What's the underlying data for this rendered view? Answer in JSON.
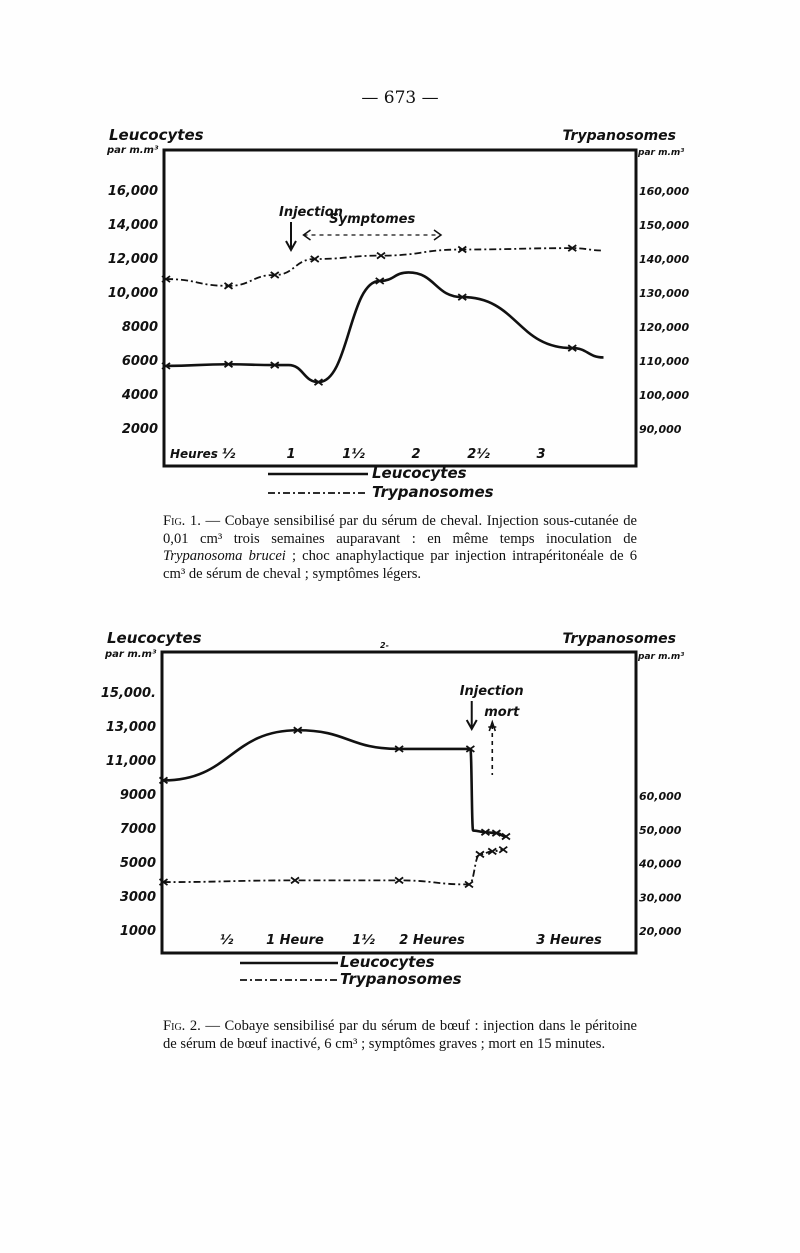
{
  "page_number": "— 673 —",
  "chart_data": [
    {
      "type": "line",
      "figure": "Fig. 1",
      "left_axis_label": [
        "Leucocytes",
        "par m.m³"
      ],
      "right_axis_label": [
        "Trypanosomes",
        "par m.m³"
      ],
      "x_label": "Heures",
      "x_ticks": [
        {
          "v": 0.5,
          "t": "½"
        },
        {
          "v": 1,
          "t": "1"
        },
        {
          "v": 1.5,
          "t": "1½"
        },
        {
          "v": 2,
          "t": "2"
        },
        {
          "v": 2.5,
          "t": "2½"
        },
        {
          "v": 3,
          "t": "3"
        }
      ],
      "left_ticks": [
        {
          "v": 16000,
          "t": "16,000"
        },
        {
          "v": 14000,
          "t": "14,000"
        },
        {
          "v": 12000,
          "t": "12,000"
        },
        {
          "v": 10000,
          "t": "10,000"
        },
        {
          "v": 8000,
          "t": "8000"
        },
        {
          "v": 6000,
          "t": "6000"
        },
        {
          "v": 4000,
          "t": "4000"
        },
        {
          "v": 2000,
          "t": "2000"
        }
      ],
      "right_ticks": [
        {
          "v": 160000,
          "t": "160,000"
        },
        {
          "v": 150000,
          "t": "150,000"
        },
        {
          "v": 140000,
          "t": "140,000"
        },
        {
          "v": 130000,
          "t": "130,000"
        },
        {
          "v": 120000,
          "t": "120,000"
        },
        {
          "v": 110000,
          "t": "110,000"
        },
        {
          "v": 100000,
          "t": "100,000"
        },
        {
          "v": 90000,
          "t": "90,000"
        }
      ],
      "xlim": [
        0,
        3.5
      ],
      "series": [
        {
          "name": "Leucocytes",
          "axis": "left",
          "style": "solid",
          "points": [
            [
              0,
              5650
            ],
            [
              0.5,
              5750
            ],
            [
              0.87,
              5700
            ],
            [
              0.98,
              5700
            ],
            [
              1.22,
              4700
            ],
            [
              1.71,
              10650
            ],
            [
              1.94,
              11150
            ],
            [
              2.37,
              9700
            ],
            [
              3.25,
              6700
            ],
            [
              3.5,
              6150
            ]
          ],
          "markers": [
            0,
            1,
            2,
            4,
            5,
            7,
            8
          ]
        },
        {
          "name": "Trypanosomes",
          "axis": "right",
          "style": "dashdot",
          "points": [
            [
              0,
              133800
            ],
            [
              0.5,
              131800
            ],
            [
              0.87,
              135000
            ],
            [
              1.19,
              139700
            ],
            [
              1.72,
              140700
            ],
            [
              2.37,
              142500
            ],
            [
              3.25,
              142900
            ],
            [
              3.5,
              142200
            ]
          ],
          "markers": [
            0,
            1,
            2,
            3,
            4,
            5,
            6
          ]
        }
      ],
      "annotations": [
        {
          "text": "Injection",
          "x": 1.0,
          "kind": "arrow-down"
        },
        {
          "text": "Symptomes",
          "from": 1.1,
          "to": 2.2,
          "kind": "range-arrow"
        }
      ],
      "legend": [
        {
          "text": "Leucocytes",
          "style": "solid"
        },
        {
          "text": "Trypanosomes",
          "style": "dashdot"
        }
      ],
      "legend_placement": "bottom"
    },
    {
      "type": "line",
      "figure": "Fig. 2",
      "left_axis_label": [
        "Leucocytes",
        "par m.m³"
      ],
      "right_axis_label": [
        "Trypanosomes",
        "par m.m³"
      ],
      "corner_mark": "2-",
      "x_ticks": [
        {
          "v": 0.5,
          "t": "½"
        },
        {
          "v": 1,
          "t": "1 Heure"
        },
        {
          "v": 1.5,
          "t": "1½"
        },
        {
          "v": 2,
          "t": "2 Heures"
        },
        {
          "v": 3,
          "t": "3 Heures"
        }
      ],
      "left_ticks": [
        {
          "v": 15000,
          "t": "15,000."
        },
        {
          "v": 13000,
          "t": "13,000"
        },
        {
          "v": 11000,
          "t": "11,000"
        },
        {
          "v": 9000,
          "t": "9000"
        },
        {
          "v": 7000,
          "t": "7000"
        },
        {
          "v": 5000,
          "t": "5000"
        },
        {
          "v": 3000,
          "t": "3000"
        },
        {
          "v": 1000,
          "t": "1000"
        }
      ],
      "right_ticks": [
        {
          "v": 60000,
          "t": "60,000"
        },
        {
          "v": 50000,
          "t": "50,000"
        },
        {
          "v": 40000,
          "t": "40,000"
        },
        {
          "v": 30000,
          "t": "30,000"
        },
        {
          "v": 20000,
          "t": "20,000"
        }
      ],
      "xlim": [
        0,
        3.45
      ],
      "series": [
        {
          "name": "Leucocytes",
          "axis": "left",
          "style": "solid",
          "points": [
            [
              0.04,
              9800
            ],
            [
              1.02,
              12750
            ],
            [
              1.76,
              11650
            ],
            [
              2.28,
              11650
            ],
            [
              2.3,
              6850
            ],
            [
              2.39,
              6750
            ],
            [
              2.47,
              6700
            ],
            [
              2.54,
              6500
            ]
          ],
          "markers": [
            0,
            1,
            2,
            3,
            5,
            6,
            7
          ]
        },
        {
          "name": "Trypanosomes",
          "axis": "right",
          "style": "dashdot",
          "points": [
            [
              0.04,
              34200
            ],
            [
              1.0,
              34700
            ],
            [
              1.76,
              34700
            ],
            [
              2.27,
              33500
            ],
            [
              2.35,
              42400
            ],
            [
              2.44,
              43300
            ],
            [
              2.52,
              43800
            ]
          ],
          "markers": [
            0,
            1,
            2,
            3,
            4,
            5,
            6
          ]
        }
      ],
      "annotations": [
        {
          "text": "Injection",
          "x": 2.29,
          "kind": "arrow-down"
        },
        {
          "text": "mort",
          "x": 2.44,
          "kind": "dashed-arrow-up"
        }
      ],
      "legend": [
        {
          "text": "Leucocytes",
          "style": "solid"
        },
        {
          "text": "Trypanosomes",
          "style": "dashdot"
        }
      ],
      "legend_placement": "bottom"
    }
  ],
  "captions": {
    "fig1": {
      "label": "Fig. 1.",
      "text_before_italic": " — Cobaye sensibilisé par du sérum de cheval. Injection sous-cutanée de 0,01 cm³ trois semaines auparavant : en même temps inoculation de ",
      "italic": "Trypanosoma brucei",
      "text_after_italic": " ; choc anaphylactique par injection intrapéritonéale de 6 cm³ de sérum de cheval ; symptômes légers."
    },
    "fig2": {
      "label": "Fig. 2.",
      "text": " — Cobaye sensibilisé par du sérum de bœuf : injection dans le péritoine de sérum de bœuf inactivé, 6 cm³ ; symptômes graves ; mort en 15 minutes."
    }
  }
}
